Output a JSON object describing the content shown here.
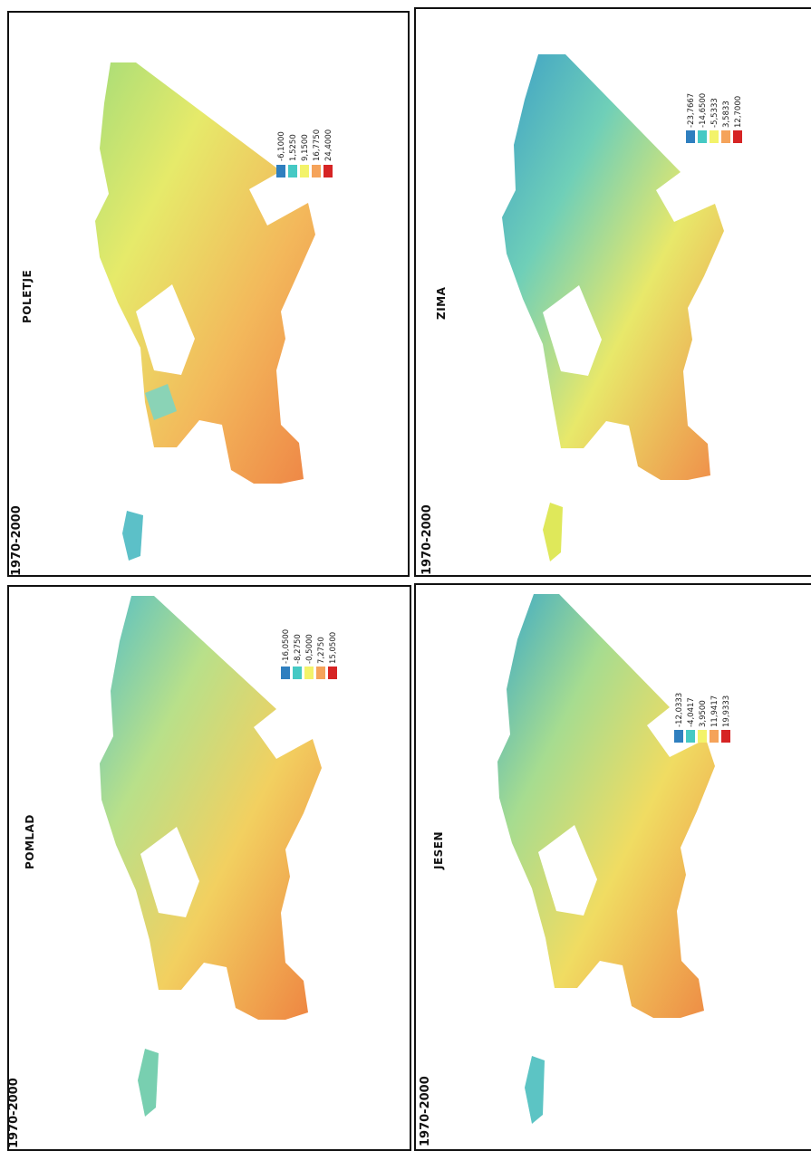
{
  "legend_colors": [
    "#2f7fbf",
    "#45c9c4",
    "#f3f36a",
    "#f5a35a",
    "#d62424"
  ],
  "panels": [
    {
      "id": "poletje",
      "season": "POLETJE",
      "period": "1970-2000",
      "legend": [
        "-6,1000",
        "1,5250",
        "9,1500",
        "16,7750",
        "24,4000"
      ]
    },
    {
      "id": "zima",
      "season": "ZIMA",
      "period": "1970-2000",
      "legend": [
        "-23,7667",
        "-14,6500",
        "-5,5333",
        "3,5833",
        "12,7000"
      ]
    },
    {
      "id": "pomlad",
      "season": "POMLAD",
      "period": "1970-2000",
      "legend": [
        "-16,0500",
        "-8,2750",
        "-0,5000",
        "7,2750",
        "15,0500"
      ]
    },
    {
      "id": "jesen",
      "season": "JESEN",
      "period": "1970-2000",
      "legend": [
        "-12,0333",
        "-4,0417",
        "3,9500",
        "11,9417",
        "19,9333"
      ]
    }
  ]
}
